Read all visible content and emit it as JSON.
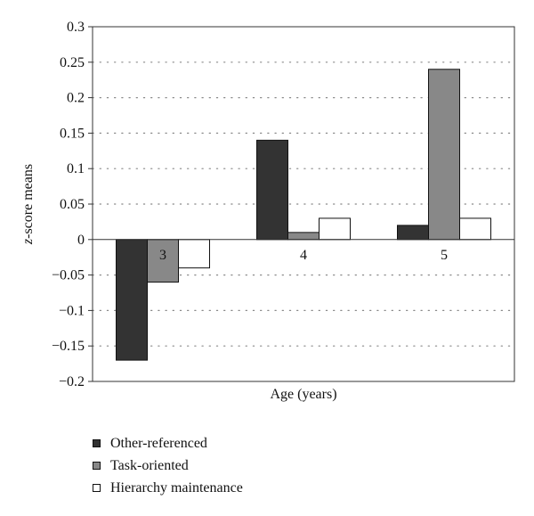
{
  "chart_data": {
    "type": "bar",
    "categories": [
      "3",
      "4",
      "5"
    ],
    "series": [
      {
        "name": "Other-referenced",
        "color": "#333333",
        "values": [
          -0.17,
          0.14,
          0.02
        ]
      },
      {
        "name": "Task-oriented",
        "color": "#888888",
        "values": [
          -0.06,
          0.01,
          0.24
        ]
      },
      {
        "name": "Hierarchy maintenance",
        "color": "#ffffff",
        "values": [
          -0.04,
          0.03,
          0.03
        ]
      }
    ],
    "xlabel": "Age (years)",
    "ylabel_italic": "z",
    "ylabel_rest": "-score means",
    "ylim": [
      -0.2,
      0.3
    ],
    "yticks": [
      "0.3",
      "0.25",
      "0.2",
      "0.15",
      "0.1",
      "0.05",
      "0",
      "−0.05",
      "−0.1",
      "−0.15",
      "−0.2"
    ],
    "grid": "dotted horizontal",
    "legend_position": "bottom-left"
  }
}
